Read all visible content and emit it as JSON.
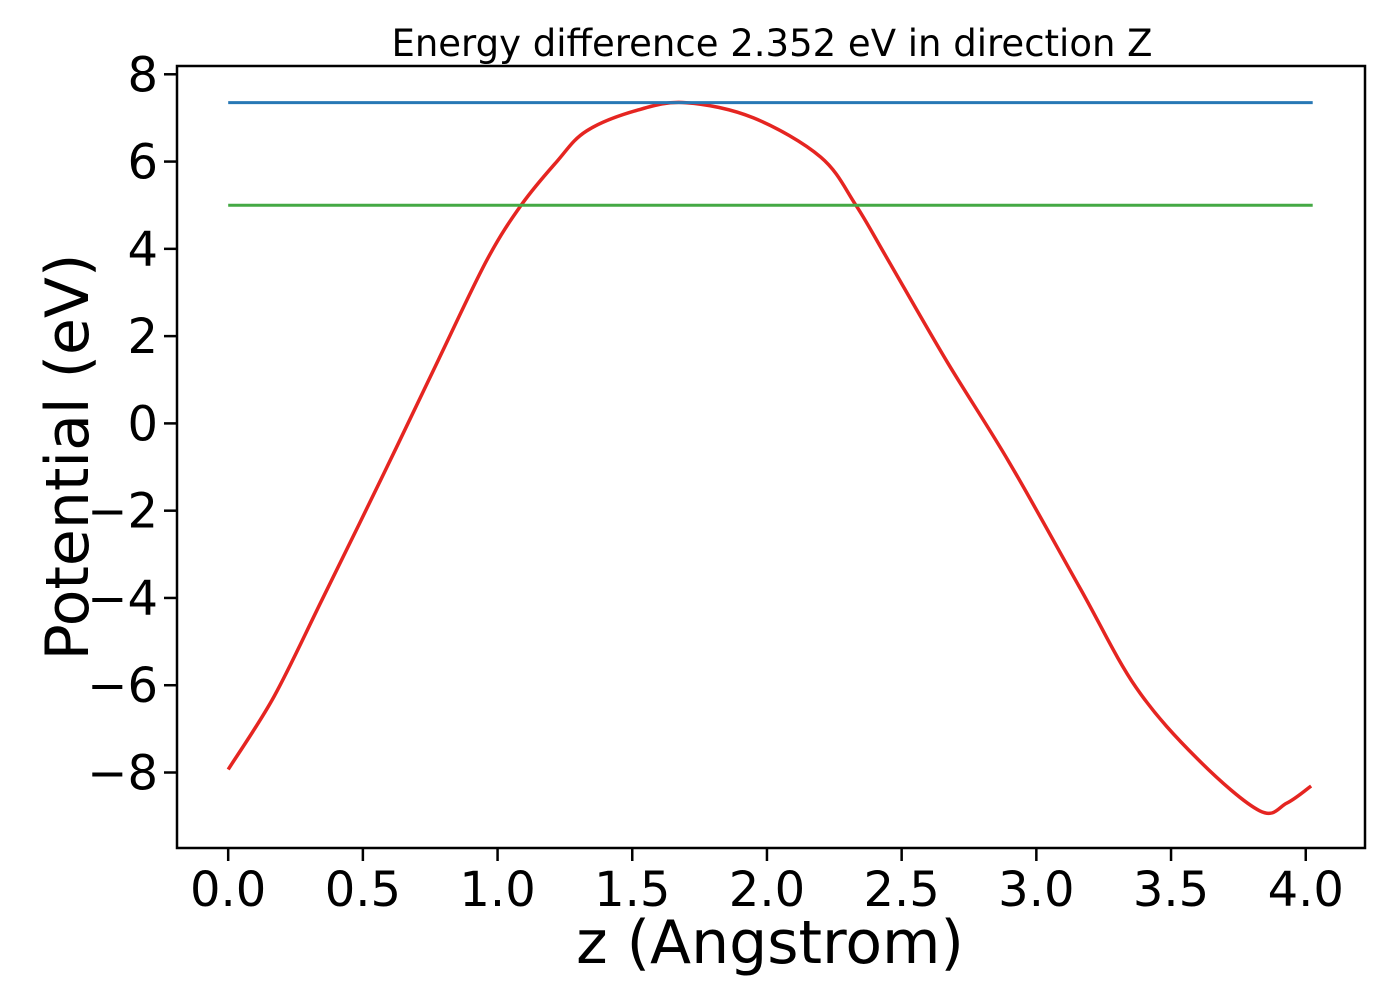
{
  "figure": {
    "background_color": "#ffffff",
    "axis_color": "#000000"
  },
  "chart_data": {
    "type": "line",
    "title": "Energy difference 2.352 eV in direction Z",
    "xlabel": "z (Angstrom)",
    "ylabel": "Potential (eV)",
    "xlim": [
      -0.19,
      4.22
    ],
    "ylim": [
      -9.73,
      8.19
    ],
    "grid": false,
    "legend": null,
    "x_ticks": [
      0.0,
      0.5,
      1.0,
      1.5,
      2.0,
      2.5,
      3.0,
      3.5,
      4.0
    ],
    "x_tick_labels": [
      "0.0",
      "0.5",
      "1.0",
      "1.5",
      "2.0",
      "2.5",
      "3.0",
      "3.5",
      "4.0"
    ],
    "y_ticks": [
      8,
      6,
      4,
      2,
      0,
      -2,
      -4,
      -6,
      -8
    ],
    "y_tick_labels": [
      "8",
      "6",
      "4",
      "2",
      "0",
      "−2",
      "−4",
      "−6",
      "−8"
    ],
    "energy_difference_eV": 2.352,
    "direction": "Z",
    "series": [
      {
        "name": "potential-curve",
        "kind": "curve",
        "color": "#e52521",
        "line_width": 3.5,
        "points": [
          [
            0.0,
            -7.93
          ],
          [
            0.17,
            -6.26
          ],
          [
            0.35,
            -4.02
          ],
          [
            0.57,
            -1.25
          ],
          [
            0.78,
            1.45
          ],
          [
            0.96,
            3.74
          ],
          [
            1.09,
            5.02
          ],
          [
            1.22,
            6.0
          ],
          [
            1.33,
            6.7
          ],
          [
            1.52,
            7.18
          ],
          [
            1.7,
            7.35
          ],
          [
            1.95,
            7.0
          ],
          [
            2.2,
            6.1
          ],
          [
            2.33,
            5.0
          ],
          [
            2.45,
            3.74
          ],
          [
            2.67,
            1.4
          ],
          [
            2.9,
            -0.9
          ],
          [
            3.16,
            -3.75
          ],
          [
            3.37,
            -6.05
          ],
          [
            3.6,
            -7.7
          ],
          [
            3.83,
            -8.88
          ],
          [
            3.93,
            -8.7
          ],
          [
            4.02,
            -8.31
          ]
        ]
      },
      {
        "name": "max-potential-line",
        "kind": "hline",
        "color": "#2878b5",
        "line_width": 3,
        "y": 7.352,
        "x_range": [
          0.0,
          4.026
        ]
      },
      {
        "name": "reference-potential-line",
        "kind": "hline",
        "color": "#44a944",
        "line_width": 3,
        "y": 5.0,
        "x_range": [
          0.0,
          4.026
        ]
      }
    ]
  }
}
